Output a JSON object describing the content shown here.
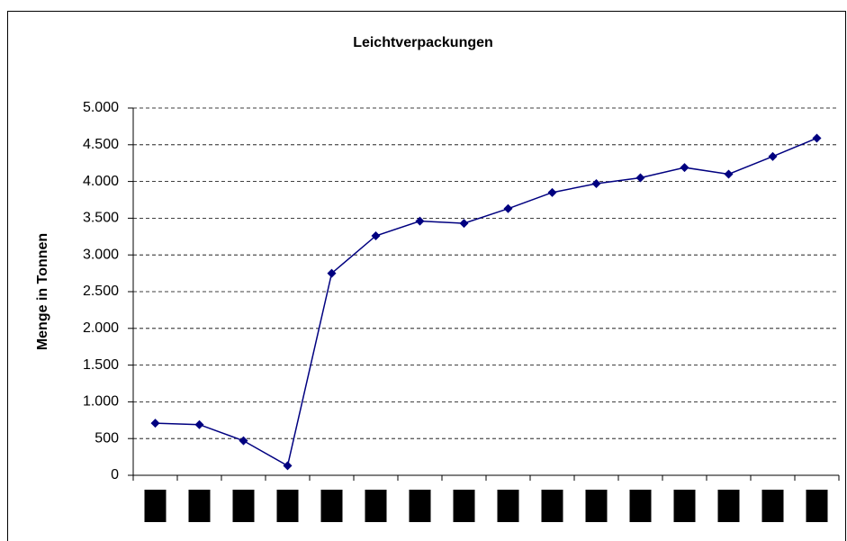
{
  "chart_data": {
    "type": "line",
    "title": "Leichtverpackungen",
    "y_label": "Menge in Tonnen",
    "categories": [
      null,
      null,
      null,
      null,
      null,
      null,
      null,
      null,
      null,
      null,
      null,
      null,
      null,
      null,
      null,
      null
    ],
    "series": [
      {
        "name": "Leichtverpackungen",
        "color": "#000080",
        "values": [
          710,
          690,
          470,
          130,
          2750,
          3260,
          3460,
          3430,
          3630,
          3850,
          3970,
          4050,
          4190,
          4100,
          4340,
          4590
        ]
      }
    ],
    "ylim": [
      0,
      5000
    ],
    "yticks": [
      0,
      500,
      {
        "value": 1000,
        "label": "1.000"
      },
      {
        "value": 1500,
        "label": "1.500"
      },
      {
        "value": 2000,
        "label": "2.000"
      },
      {
        "value": 2500,
        "label": "2.500"
      },
      {
        "value": 3000,
        "label": "3.000"
      },
      {
        "value": 3500,
        "label": "3.500"
      },
      {
        "value": 4000,
        "label": "4.000"
      },
      {
        "value": 4500,
        "label": "4.500"
      },
      {
        "value": 5000,
        "label": "5.000"
      }
    ],
    "grid": true
  }
}
